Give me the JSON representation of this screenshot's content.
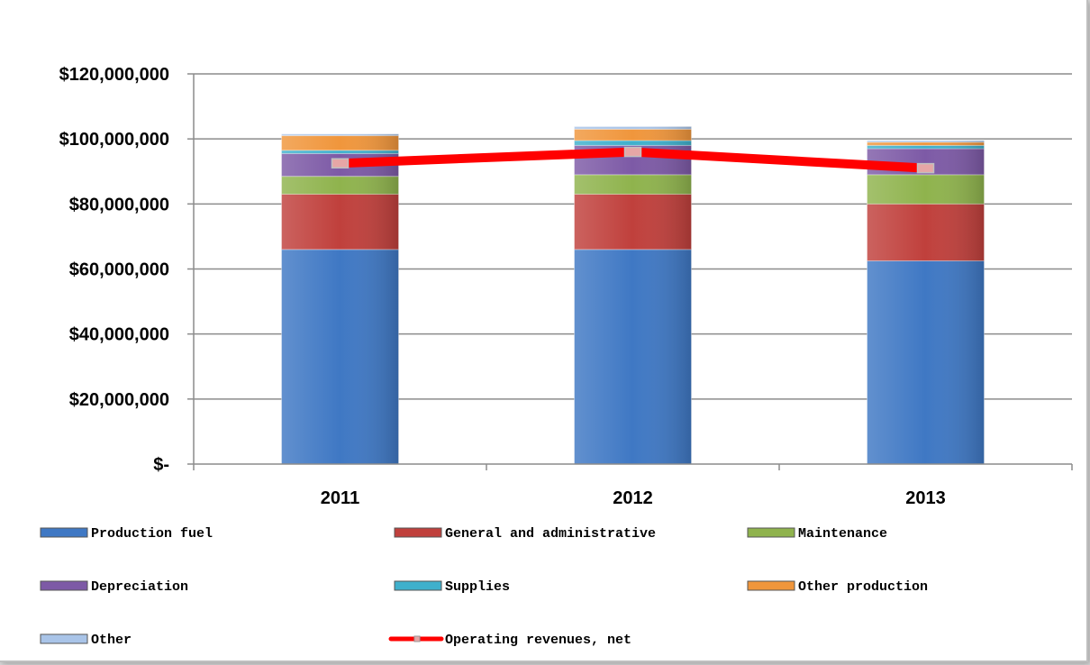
{
  "chart_data": {
    "type": "bar",
    "stacked": true,
    "categories": [
      "2011",
      "2012",
      "2013"
    ],
    "ylim": [
      0,
      120000000
    ],
    "yticks": [
      0,
      20000000,
      40000000,
      60000000,
      80000000,
      100000000,
      120000000
    ],
    "ytick_labels": [
      "$-",
      "$20,000,000",
      "$40,000,000",
      "$60,000,000",
      "$80,000,000",
      "$100,000,000",
      "$120,000,000"
    ],
    "grid": true,
    "legend_position": "bottom",
    "series": [
      {
        "name": "Production fuel",
        "color": "#3f78c4",
        "values": [
          66000000,
          66000000,
          62500000
        ]
      },
      {
        "name": "General and administrative",
        "color": "#c0403c",
        "values": [
          17000000,
          17000000,
          17500000
        ]
      },
      {
        "name": "Maintenance",
        "color": "#8fb34d",
        "values": [
          5500000,
          6000000,
          9000000
        ]
      },
      {
        "name": "Depreciation",
        "color": "#7d5aa6",
        "values": [
          7000000,
          9000000,
          8000000
        ]
      },
      {
        "name": "Supplies",
        "color": "#3fb0cc",
        "values": [
          1000000,
          1500000,
          1000000
        ]
      },
      {
        "name": "Other production",
        "color": "#f0963c",
        "values": [
          4500000,
          3500000,
          1000000
        ]
      },
      {
        "name": "Other",
        "color": "#a9c4e8",
        "values": [
          500000,
          800000,
          500000
        ]
      }
    ],
    "line_series": {
      "name": "Operating revenues, net",
      "color": "#ff0000",
      "values": [
        92500000,
        96000000,
        91000000
      ]
    }
  }
}
